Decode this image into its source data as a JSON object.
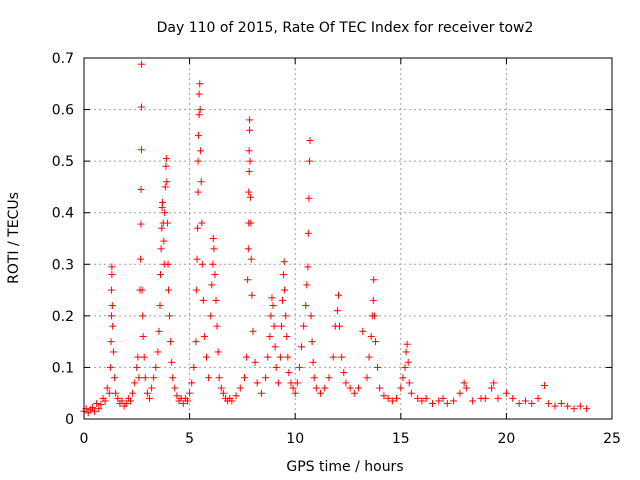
{
  "chart_data": {
    "type": "scatter",
    "title": "Day 110 of 2015, Rate Of TEC Index for receiver tow2",
    "xlabel": "GPS time / hours",
    "ylabel": "ROTI / TECUs",
    "xlim": [
      0,
      25
    ],
    "ylim": [
      0,
      0.7
    ],
    "xticks": [
      0,
      5,
      10,
      15,
      20,
      25
    ],
    "yticks": [
      0,
      0.1,
      0.2,
      0.3,
      0.4,
      0.5,
      0.6,
      0.7
    ],
    "ytick_labels": [
      "0",
      "0.1",
      "0.2",
      "0.3",
      "0.4",
      "0.5",
      "0.6",
      "0.7"
    ],
    "xtick_labels": [
      "0",
      "5",
      "10",
      "15",
      "20",
      "25"
    ],
    "grid": true,
    "marker": "+",
    "color": "#ff0000",
    "series": [
      {
        "points": [
          [
            0.0,
            0.015
          ],
          [
            0.1,
            0.02
          ],
          [
            0.2,
            0.012
          ],
          [
            0.3,
            0.018
          ],
          [
            0.4,
            0.022
          ],
          [
            0.5,
            0.015
          ],
          [
            0.6,
            0.03
          ],
          [
            0.7,
            0.02
          ],
          [
            0.8,
            0.028
          ],
          [
            0.9,
            0.04
          ],
          [
            1.0,
            0.035
          ],
          [
            1.1,
            0.06
          ],
          [
            1.2,
            0.05
          ],
          [
            1.25,
            0.1
          ],
          [
            1.28,
            0.15
          ],
          [
            1.3,
            0.2
          ],
          [
            1.3,
            0.25
          ],
          [
            1.32,
            0.28
          ],
          [
            1.32,
            0.295
          ],
          [
            1.34,
            0.22
          ],
          [
            1.36,
            0.18
          ],
          [
            1.4,
            0.13
          ],
          [
            1.45,
            0.08
          ],
          [
            1.5,
            0.05
          ],
          [
            1.6,
            0.04
          ],
          [
            1.7,
            0.03
          ],
          [
            1.8,
            0.035
          ],
          [
            1.9,
            0.025
          ],
          [
            2.0,
            0.03
          ],
          [
            2.1,
            0.04
          ],
          [
            2.2,
            0.035
          ],
          [
            2.3,
            0.05
          ],
          [
            2.4,
            0.07
          ],
          [
            2.5,
            0.1
          ],
          [
            2.55,
            0.12
          ],
          [
            2.6,
            0.08
          ],
          [
            2.65,
            0.25
          ],
          [
            2.68,
            0.31
          ],
          [
            2.7,
            0.378
          ],
          [
            2.7,
            0.445
          ],
          [
            2.72,
            0.522
          ],
          [
            2.72,
            0.605
          ],
          [
            2.72,
            0.688
          ],
          [
            2.75,
            0.25
          ],
          [
            2.78,
            0.2
          ],
          [
            2.8,
            0.16
          ],
          [
            2.85,
            0.12
          ],
          [
            2.9,
            0.08
          ],
          [
            3.0,
            0.05
          ],
          [
            3.1,
            0.04
          ],
          [
            3.2,
            0.06
          ],
          [
            3.3,
            0.08
          ],
          [
            3.4,
            0.1
          ],
          [
            3.5,
            0.13
          ],
          [
            3.55,
            0.17
          ],
          [
            3.6,
            0.22
          ],
          [
            3.62,
            0.28
          ],
          [
            3.65,
            0.33
          ],
          [
            3.68,
            0.37
          ],
          [
            3.7,
            0.41
          ],
          [
            3.72,
            0.42
          ],
          [
            3.75,
            0.38
          ],
          [
            3.78,
            0.345
          ],
          [
            3.8,
            0.3
          ],
          [
            3.82,
            0.4
          ],
          [
            3.85,
            0.45
          ],
          [
            3.88,
            0.49
          ],
          [
            3.9,
            0.505
          ],
          [
            3.92,
            0.46
          ],
          [
            3.95,
            0.38
          ],
          [
            3.98,
            0.3
          ],
          [
            4.0,
            0.25
          ],
          [
            4.05,
            0.2
          ],
          [
            4.1,
            0.15
          ],
          [
            4.15,
            0.11
          ],
          [
            4.2,
            0.08
          ],
          [
            4.3,
            0.06
          ],
          [
            4.4,
            0.045
          ],
          [
            4.5,
            0.035
          ],
          [
            4.6,
            0.04
          ],
          [
            4.7,
            0.03
          ],
          [
            4.8,
            0.04
          ],
          [
            4.9,
            0.035
          ],
          [
            5.0,
            0.05
          ],
          [
            5.1,
            0.07
          ],
          [
            5.2,
            0.1
          ],
          [
            5.3,
            0.15
          ],
          [
            5.32,
            0.25
          ],
          [
            5.35,
            0.31
          ],
          [
            5.38,
            0.37
          ],
          [
            5.4,
            0.44
          ],
          [
            5.4,
            0.5
          ],
          [
            5.42,
            0.55
          ],
          [
            5.45,
            0.59
          ],
          [
            5.45,
            0.63
          ],
          [
            5.48,
            0.65
          ],
          [
            5.5,
            0.6
          ],
          [
            5.52,
            0.52
          ],
          [
            5.55,
            0.46
          ],
          [
            5.58,
            0.38
          ],
          [
            5.6,
            0.3
          ],
          [
            5.65,
            0.23
          ],
          [
            5.7,
            0.16
          ],
          [
            5.8,
            0.12
          ],
          [
            5.9,
            0.08
          ],
          [
            6.0,
            0.2
          ],
          [
            6.05,
            0.26
          ],
          [
            6.1,
            0.3
          ],
          [
            6.12,
            0.35
          ],
          [
            6.15,
            0.33
          ],
          [
            6.2,
            0.28
          ],
          [
            6.25,
            0.23
          ],
          [
            6.3,
            0.18
          ],
          [
            6.35,
            0.13
          ],
          [
            6.4,
            0.08
          ],
          [
            6.5,
            0.06
          ],
          [
            6.6,
            0.05
          ],
          [
            6.7,
            0.04
          ],
          [
            6.8,
            0.035
          ],
          [
            6.9,
            0.04
          ],
          [
            7.0,
            0.035
          ],
          [
            7.2,
            0.045
          ],
          [
            7.4,
            0.06
          ],
          [
            7.6,
            0.08
          ],
          [
            7.7,
            0.12
          ],
          [
            7.75,
            0.27
          ],
          [
            7.78,
            0.33
          ],
          [
            7.8,
            0.38
          ],
          [
            7.8,
            0.44
          ],
          [
            7.82,
            0.48
          ],
          [
            7.82,
            0.52
          ],
          [
            7.84,
            0.56
          ],
          [
            7.84,
            0.58
          ],
          [
            7.86,
            0.5
          ],
          [
            7.88,
            0.43
          ],
          [
            7.9,
            0.38
          ],
          [
            7.92,
            0.31
          ],
          [
            7.95,
            0.24
          ],
          [
            8.0,
            0.17
          ],
          [
            8.1,
            0.11
          ],
          [
            8.2,
            0.07
          ],
          [
            8.4,
            0.05
          ],
          [
            8.6,
            0.08
          ],
          [
            8.7,
            0.12
          ],
          [
            8.8,
            0.16
          ],
          [
            8.85,
            0.2
          ],
          [
            8.9,
            0.235
          ],
          [
            8.95,
            0.22
          ],
          [
            9.0,
            0.18
          ],
          [
            9.05,
            0.14
          ],
          [
            9.1,
            0.1
          ],
          [
            9.2,
            0.07
          ],
          [
            9.3,
            0.12
          ],
          [
            9.35,
            0.18
          ],
          [
            9.4,
            0.23
          ],
          [
            9.45,
            0.28
          ],
          [
            9.48,
            0.305
          ],
          [
            9.5,
            0.25
          ],
          [
            9.55,
            0.2
          ],
          [
            9.6,
            0.16
          ],
          [
            9.65,
            0.12
          ],
          [
            9.7,
            0.09
          ],
          [
            9.8,
            0.07
          ],
          [
            9.9,
            0.06
          ],
          [
            10.0,
            0.05
          ],
          [
            10.1,
            0.07
          ],
          [
            10.2,
            0.1
          ],
          [
            10.3,
            0.14
          ],
          [
            10.4,
            0.18
          ],
          [
            10.5,
            0.22
          ],
          [
            10.55,
            0.26
          ],
          [
            10.6,
            0.295
          ],
          [
            10.62,
            0.36
          ],
          [
            10.65,
            0.428
          ],
          [
            10.68,
            0.5
          ],
          [
            10.7,
            0.54
          ],
          [
            10.75,
            0.2
          ],
          [
            10.8,
            0.15
          ],
          [
            10.85,
            0.11
          ],
          [
            10.9,
            0.08
          ],
          [
            11.0,
            0.06
          ],
          [
            11.2,
            0.05
          ],
          [
            11.4,
            0.06
          ],
          [
            11.6,
            0.08
          ],
          [
            11.8,
            0.12
          ],
          [
            11.9,
            0.18
          ],
          [
            12.0,
            0.21
          ],
          [
            12.05,
            0.24
          ],
          [
            12.1,
            0.18
          ],
          [
            12.2,
            0.12
          ],
          [
            12.3,
            0.09
          ],
          [
            12.4,
            0.07
          ],
          [
            12.6,
            0.06
          ],
          [
            12.8,
            0.05
          ],
          [
            13.0,
            0.06
          ],
          [
            13.2,
            0.17
          ],
          [
            13.4,
            0.08
          ],
          [
            13.5,
            0.12
          ],
          [
            13.6,
            0.16
          ],
          [
            13.65,
            0.2
          ],
          [
            13.7,
            0.23
          ],
          [
            13.72,
            0.27
          ],
          [
            13.75,
            0.2
          ],
          [
            13.8,
            0.15
          ],
          [
            13.9,
            0.1
          ],
          [
            14.0,
            0.06
          ],
          [
            14.2,
            0.045
          ],
          [
            14.4,
            0.04
          ],
          [
            14.6,
            0.035
          ],
          [
            14.8,
            0.04
          ],
          [
            15.0,
            0.06
          ],
          [
            15.1,
            0.08
          ],
          [
            15.2,
            0.1
          ],
          [
            15.25,
            0.13
          ],
          [
            15.3,
            0.145
          ],
          [
            15.35,
            0.11
          ],
          [
            15.4,
            0.07
          ],
          [
            15.5,
            0.05
          ],
          [
            15.8,
            0.04
          ],
          [
            16.0,
            0.035
          ],
          [
            16.2,
            0.04
          ],
          [
            16.5,
            0.03
          ],
          [
            16.8,
            0.035
          ],
          [
            17.0,
            0.04
          ],
          [
            17.2,
            0.03
          ],
          [
            17.5,
            0.035
          ],
          [
            17.8,
            0.05
          ],
          [
            18.0,
            0.07
          ],
          [
            18.1,
            0.06
          ],
          [
            18.4,
            0.035
          ],
          [
            18.8,
            0.04
          ],
          [
            19.0,
            0.04
          ],
          [
            19.3,
            0.06
          ],
          [
            19.4,
            0.07
          ],
          [
            19.6,
            0.04
          ],
          [
            20.0,
            0.05
          ],
          [
            20.3,
            0.04
          ],
          [
            20.6,
            0.03
          ],
          [
            20.9,
            0.035
          ],
          [
            21.2,
            0.03
          ],
          [
            21.5,
            0.04
          ],
          [
            21.8,
            0.065
          ],
          [
            22.0,
            0.03
          ],
          [
            22.3,
            0.025
          ],
          [
            22.6,
            0.03
          ],
          [
            22.9,
            0.025
          ],
          [
            23.2,
            0.02
          ],
          [
            23.5,
            0.025
          ],
          [
            23.8,
            0.02
          ]
        ]
      }
    ]
  }
}
